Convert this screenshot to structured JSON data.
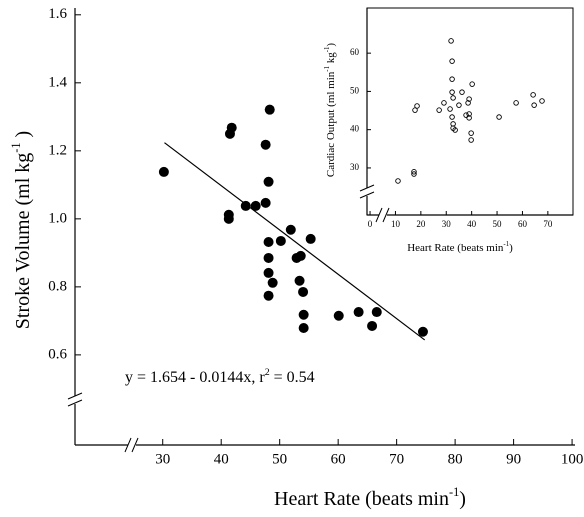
{
  "chart_data": [
    {
      "type": "scatter",
      "xlabel": [
        "Heart Rate (beats min",
        "-1",
        ")"
      ],
      "ylabel": [
        "Stroke Volume (ml  kg",
        "-1",
        " )"
      ],
      "annotation": [
        "y = 1.654 - 0.0144x,  r",
        "2",
        " = 0.54"
      ],
      "xlim": [
        15,
        100.5
      ],
      "ylim": [
        0.335,
        1.62
      ],
      "xticks": [
        30,
        40,
        50,
        60,
        70,
        80,
        90,
        100
      ],
      "yticks": [
        0.6,
        0.8,
        {
          "value": 1,
          "label": "1.0"
        },
        1.2,
        1.4,
        1.6
      ],
      "marker": "filled",
      "color": "#000000",
      "x": [
        30.2,
        41.5,
        41.8,
        41.3,
        41.3,
        44.2,
        45.9,
        47.6,
        47.6,
        48.3,
        48.1,
        48.1,
        48.1,
        48.1,
        48.1,
        48.8,
        50.2,
        51.9,
        52.9,
        53.6,
        53.4,
        54.0,
        54.1,
        54.1,
        55.3,
        60.1,
        63.5,
        65.8,
        66.6,
        74.5
      ],
      "values": [
        1.138,
        1.25,
        1.268,
        1.012,
        1.0,
        1.038,
        1.038,
        1.047,
        1.218,
        1.321,
        1.109,
        0.932,
        0.885,
        0.841,
        0.774,
        0.812,
        0.935,
        0.968,
        0.885,
        0.891,
        0.818,
        0.785,
        0.718,
        0.679,
        0.941,
        0.715,
        0.726,
        0.685,
        0.726,
        0.668
      ],
      "trendline": {
        "x": [
          30.3,
          74.8
        ],
        "y": [
          1.224,
          0.644
        ]
      }
    },
    {
      "type": "scatter",
      "xlabel": [
        "Heart Rate (beats min",
        "-1",
        ")"
      ],
      "ylabel": [
        "Cardiac Output (ml min",
        "-1",
        " kg",
        "-1",
        ")"
      ],
      "xlim": [
        -1.2,
        79.9
      ],
      "ylim": [
        17.7,
        71.8
      ],
      "xticks": [
        0,
        10,
        20,
        30,
        40,
        50,
        60,
        70
      ],
      "yticks": [
        30,
        40,
        50,
        60
      ],
      "marker": "open",
      "color": "#000000",
      "x": [
        11.0,
        17.3,
        17.3,
        17.7,
        18.5,
        27.2,
        29.1,
        31.5,
        31.9,
        32.3,
        32.3,
        32.3,
        32.7,
        32.3,
        32.7,
        32.7,
        33.5,
        35.0,
        36.2,
        37.8,
        38.6,
        39.0,
        39.0,
        39.0,
        39.8,
        39.8,
        40.2,
        50.8,
        57.5,
        64.2,
        64.6,
        67.7
      ],
      "values": [
        26.6,
        28.4,
        29.0,
        45.1,
        46.2,
        45.1,
        47.0,
        45.4,
        63.2,
        57.9,
        53.2,
        49.8,
        48.3,
        43.3,
        41.5,
        40.4,
        39.9,
        46.4,
        49.8,
        43.8,
        47.0,
        48.0,
        44.1,
        43.1,
        39.1,
        37.3,
        51.9,
        43.3,
        47.0,
        49.1,
        46.4,
        47.5
      ]
    }
  ]
}
